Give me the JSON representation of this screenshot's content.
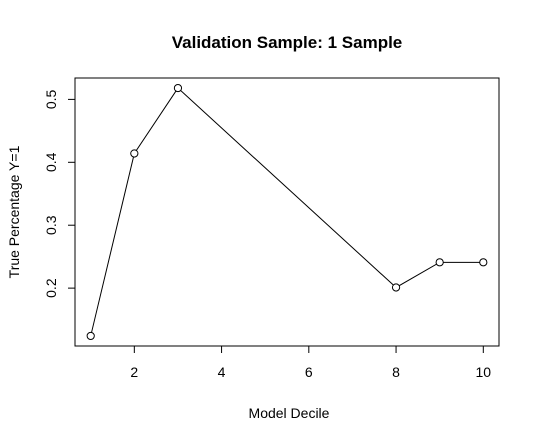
{
  "chart_data": {
    "type": "line",
    "title": "Validation Sample: 1 Sample",
    "xlabel": "Model Decile",
    "ylabel": "True Percentage Y=1",
    "x": [
      1,
      2,
      3,
      8,
      9,
      10
    ],
    "series": [
      {
        "values": [
          0.124,
          0.414,
          0.518,
          0.201,
          0.241,
          0.241
        ]
      }
    ],
    "xlim": [
      0.64,
      10.36
    ],
    "ylim": [
      0.108,
      0.534
    ],
    "xticks": [
      2,
      4,
      6,
      8,
      10
    ],
    "yticks": [
      0.2,
      0.3,
      0.4,
      0.5
    ],
    "xtick_labels": [
      "2",
      "4",
      "6",
      "8",
      "10"
    ],
    "ytick_labels": [
      "0.2",
      "0.3",
      "0.4",
      "0.5"
    ],
    "grid": false,
    "markers": "open-circle",
    "line_color": "#000000"
  }
}
